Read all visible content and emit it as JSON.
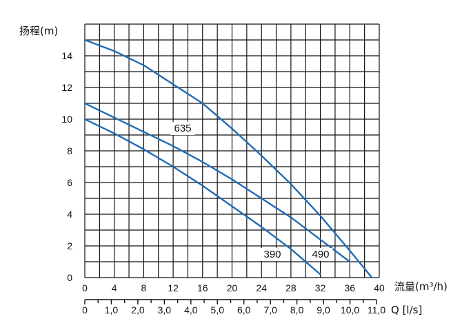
{
  "chart_data": {
    "type": "line",
    "ylabel": "扬程(m)",
    "xlabel": "流量(m³/h)",
    "x2label": "Q [l/s]",
    "xlim": [
      0,
      40
    ],
    "ylim": [
      0,
      16
    ],
    "x_ticks": [
      "0",
      "4",
      "8",
      "12",
      "16",
      "20",
      "24",
      "28",
      "32",
      "36",
      "40"
    ],
    "y_ticks": [
      "0",
      "2",
      "4",
      "6",
      "8",
      "10",
      "12",
      "14"
    ],
    "x2_ticks": [
      "0",
      "1,0",
      "2,0",
      "3,0",
      "4,0",
      "5,0",
      "6,0",
      "7,0",
      "8,0",
      "9,0",
      "10,0",
      "11,0"
    ],
    "grid": true,
    "line_color": "#1f6bb5",
    "series": [
      {
        "name": "635",
        "points": [
          [
            0,
            15.0
          ],
          [
            4,
            14.3
          ],
          [
            8,
            13.4
          ],
          [
            12,
            12.2
          ],
          [
            16,
            11.0
          ],
          [
            20,
            9.4
          ],
          [
            24,
            7.7
          ],
          [
            28,
            5.9
          ],
          [
            32,
            3.9
          ],
          [
            36,
            1.7
          ],
          [
            39,
            0.0
          ]
        ]
      },
      {
        "name": "490",
        "points": [
          [
            0,
            11.0
          ],
          [
            4,
            10.1
          ],
          [
            8,
            9.2
          ],
          [
            12,
            8.3
          ],
          [
            16,
            7.3
          ],
          [
            20,
            6.2
          ],
          [
            24,
            5.0
          ],
          [
            28,
            3.8
          ],
          [
            32,
            2.4
          ],
          [
            36,
            1.0
          ]
        ]
      },
      {
        "name": "390",
        "points": [
          [
            0,
            10.0
          ],
          [
            4,
            9.1
          ],
          [
            8,
            8.1
          ],
          [
            12,
            7.0
          ],
          [
            16,
            5.8
          ],
          [
            20,
            4.5
          ],
          [
            24,
            3.2
          ],
          [
            28,
            1.8
          ],
          [
            32,
            0.2
          ]
        ]
      }
    ]
  }
}
